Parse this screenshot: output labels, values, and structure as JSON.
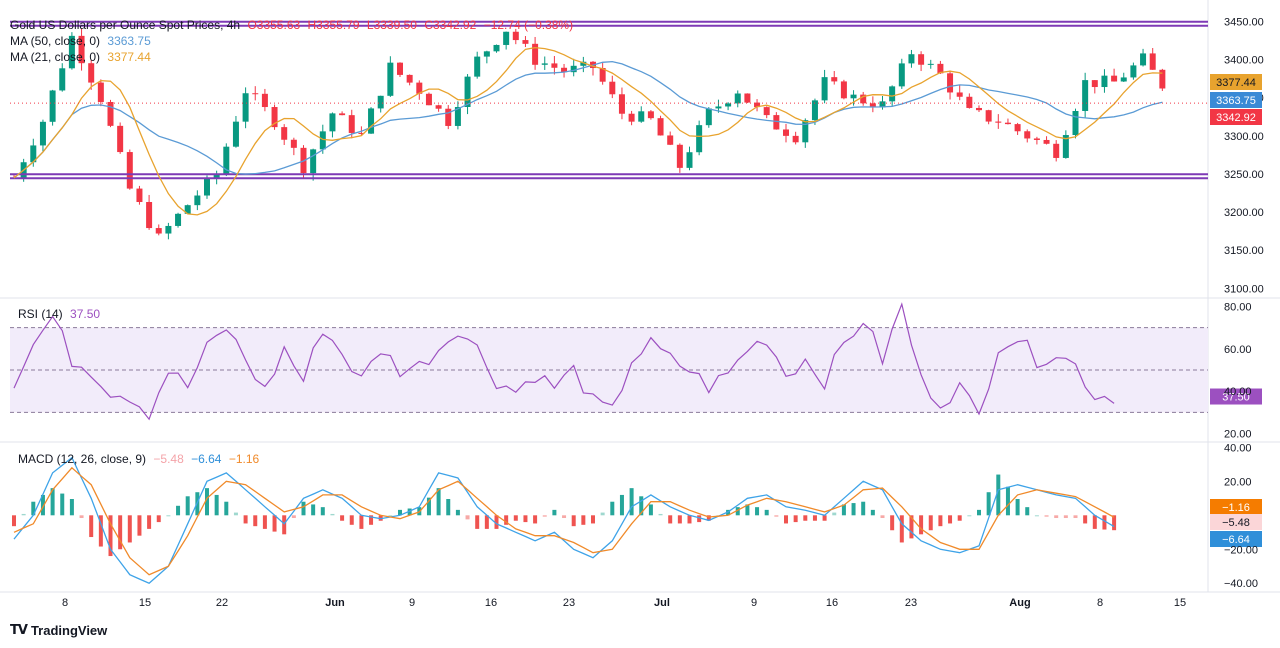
{
  "header": {
    "symbol": "Gold US Dollars per Ounce Spot Prices, 4h",
    "open": "O3355.63",
    "high": "H3355.79",
    "low": "L3339.50",
    "close": "C3342.92",
    "change": "−12.74 (−0.38%)"
  },
  "legends": {
    "ma50": {
      "label": "MA (50, close, 0)",
      "value": "3363.75",
      "color": "#5b9bd5"
    },
    "ma21": {
      "label": "MA (21, close, 0)",
      "value": "3377.44",
      "color": "#e8a32e"
    },
    "rsi": {
      "label": "RSI (14)",
      "value": "37.50",
      "color": "#9c50c0"
    },
    "macd": {
      "label": "MACD (12, 26, close, 9)",
      "hist": "−5.48",
      "macd": "−6.64",
      "signal": "−1.16"
    }
  },
  "brand": {
    "name": "TradingView"
  },
  "colors": {
    "up": "#089981",
    "down": "#f23645",
    "ma50": "#5b9bd5",
    "ma21": "#e8a32e",
    "rsi": "#9c50c0",
    "zone": "#7e3ab5",
    "macd": "#3ea3e8",
    "signal": "#f08a2a"
  },
  "chart_data": [
    {
      "type": "candlestick",
      "title": "Gold US Dollars per Ounce Spot Prices, 4h",
      "x_tick_labels": [
        "8",
        "15",
        "22",
        "Jun",
        "9",
        "16",
        "23",
        "Jul",
        "9",
        "16",
        "23",
        "Aug",
        "8",
        "15"
      ],
      "y_ticks": [
        "3450.00",
        "3400.00",
        "3350.00",
        "3300.00",
        "3250.00",
        "3200.00",
        "3150.00",
        "3100.00"
      ],
      "ylim": [
        3090,
        3465
      ],
      "close_points": [
        [
          0,
          3245
        ],
        [
          3,
          3320
        ],
        [
          6,
          3430
        ],
        [
          9,
          3350
        ],
        [
          12,
          3230
        ],
        [
          15,
          3165
        ],
        [
          18,
          3210
        ],
        [
          21,
          3250
        ],
        [
          24,
          3360
        ],
        [
          27,
          3320
        ],
        [
          30,
          3260
        ],
        [
          33,
          3330
        ],
        [
          36,
          3300
        ],
        [
          39,
          3390
        ],
        [
          42,
          3360
        ],
        [
          45,
          3320
        ],
        [
          48,
          3400
        ],
        [
          51,
          3440
        ],
        [
          54,
          3400
        ],
        [
          57,
          3385
        ],
        [
          60,
          3390
        ],
        [
          63,
          3330
        ],
        [
          66,
          3320
        ],
        [
          69,
          3260
        ],
        [
          72,
          3330
        ],
        [
          75,
          3360
        ],
        [
          78,
          3320
        ],
        [
          81,
          3300
        ],
        [
          84,
          3370
        ],
        [
          87,
          3350
        ],
        [
          90,
          3340
        ],
        [
          93,
          3410
        ],
        [
          96,
          3380
        ],
        [
          99,
          3330
        ],
        [
          102,
          3320
        ],
        [
          105,
          3300
        ],
        [
          108,
          3280
        ],
        [
          111,
          3370
        ],
        [
          114,
          3370
        ],
        [
          117,
          3400
        ],
        [
          120,
          3350
        ]
      ],
      "support_levels": [
        3247,
        3447
      ],
      "series": [
        {
          "name": "MA (50, close, 0)",
          "last": 3363.75
        },
        {
          "name": "MA (21, close, 0)",
          "last": 3377.44
        }
      ],
      "price_labels": [
        {
          "name": "MA21",
          "value": "3377.44"
        },
        {
          "name": "MA50",
          "value": "3363.75"
        },
        {
          "name": "Last",
          "value": "3342.92"
        }
      ]
    },
    {
      "type": "line",
      "title": "RSI (14)",
      "y_ticks": [
        "80.00",
        "60.00",
        "40.00",
        "20.00"
      ],
      "ylim": [
        17,
        83
      ],
      "band": [
        30,
        70
      ],
      "midline": 50,
      "points": [
        [
          0,
          45
        ],
        [
          2,
          62
        ],
        [
          4,
          75
        ],
        [
          6,
          55
        ],
        [
          8,
          50
        ],
        [
          10,
          40
        ],
        [
          12,
          38
        ],
        [
          14,
          30
        ],
        [
          16,
          50
        ],
        [
          18,
          42
        ],
        [
          20,
          60
        ],
        [
          22,
          70
        ],
        [
          24,
          55
        ],
        [
          26,
          40
        ],
        [
          28,
          60
        ],
        [
          30,
          45
        ],
        [
          32,
          70
        ],
        [
          34,
          58
        ],
        [
          36,
          45
        ],
        [
          38,
          60
        ],
        [
          40,
          50
        ],
        [
          42,
          52
        ],
        [
          44,
          60
        ],
        [
          46,
          70
        ],
        [
          48,
          60
        ],
        [
          50,
          45
        ],
        [
          52,
          40
        ],
        [
          54,
          48
        ],
        [
          56,
          42
        ],
        [
          58,
          50
        ],
        [
          60,
          35
        ],
        [
          62,
          30
        ],
        [
          64,
          55
        ],
        [
          66,
          62
        ],
        [
          68,
          55
        ],
        [
          70,
          50
        ],
        [
          72,
          42
        ],
        [
          74,
          48
        ],
        [
          76,
          60
        ],
        [
          78,
          65
        ],
        [
          80,
          48
        ],
        [
          82,
          55
        ],
        [
          84,
          45
        ],
        [
          86,
          62
        ],
        [
          88,
          74
        ],
        [
          90,
          55
        ],
        [
          92,
          80
        ],
        [
          94,
          45
        ],
        [
          96,
          35
        ],
        [
          98,
          42
        ],
        [
          100,
          28
        ],
        [
          102,
          62
        ],
        [
          104,
          65
        ],
        [
          106,
          55
        ],
        [
          108,
          58
        ],
        [
          110,
          52
        ],
        [
          112,
          38
        ],
        [
          114,
          37.5
        ]
      ],
      "last_value": "37.50"
    },
    {
      "type": "bar+line",
      "title": "MACD (12, 26, close, 9)",
      "y_ticks": [
        "40.00",
        "20.00",
        "−20.00",
        "−40.00"
      ],
      "ylim": [
        -44,
        42
      ],
      "macd_points": [
        [
          0,
          -14
        ],
        [
          2,
          0
        ],
        [
          4,
          25
        ],
        [
          6,
          34
        ],
        [
          8,
          10
        ],
        [
          10,
          -20
        ],
        [
          12,
          -35
        ],
        [
          14,
          -40
        ],
        [
          16,
          -30
        ],
        [
          18,
          -5
        ],
        [
          20,
          20
        ],
        [
          22,
          25
        ],
        [
          24,
          15
        ],
        [
          26,
          5
        ],
        [
          28,
          -5
        ],
        [
          30,
          10
        ],
        [
          32,
          15
        ],
        [
          34,
          10
        ],
        [
          36,
          0
        ],
        [
          38,
          -2
        ],
        [
          40,
          0
        ],
        [
          42,
          5
        ],
        [
          44,
          25
        ],
        [
          46,
          22
        ],
        [
          48,
          5
        ],
        [
          50,
          -5
        ],
        [
          52,
          -10
        ],
        [
          54,
          -15
        ],
        [
          56,
          -10
        ],
        [
          58,
          -20
        ],
        [
          60,
          -25
        ],
        [
          62,
          -15
        ],
        [
          64,
          5
        ],
        [
          66,
          12
        ],
        [
          68,
          5
        ],
        [
          70,
          0
        ],
        [
          72,
          -3
        ],
        [
          74,
          2
        ],
        [
          76,
          10
        ],
        [
          78,
          12
        ],
        [
          80,
          5
        ],
        [
          82,
          3
        ],
        [
          84,
          0
        ],
        [
          86,
          10
        ],
        [
          88,
          20
        ],
        [
          90,
          15
        ],
        [
          92,
          -5
        ],
        [
          94,
          -15
        ],
        [
          96,
          -20
        ],
        [
          98,
          -22
        ],
        [
          100,
          -18
        ],
        [
          102,
          15
        ],
        [
          104,
          18
        ],
        [
          106,
          15
        ],
        [
          108,
          12
        ],
        [
          110,
          10
        ],
        [
          112,
          0
        ],
        [
          114,
          -6.64
        ]
      ],
      "signal_points": [
        [
          0,
          -10
        ],
        [
          2,
          -5
        ],
        [
          4,
          15
        ],
        [
          6,
          28
        ],
        [
          8,
          18
        ],
        [
          10,
          -5
        ],
        [
          12,
          -25
        ],
        [
          14,
          -35
        ],
        [
          16,
          -30
        ],
        [
          18,
          -12
        ],
        [
          20,
          10
        ],
        [
          22,
          20
        ],
        [
          24,
          18
        ],
        [
          26,
          10
        ],
        [
          28,
          2
        ],
        [
          30,
          5
        ],
        [
          32,
          12
        ],
        [
          34,
          12
        ],
        [
          36,
          5
        ],
        [
          38,
          0
        ],
        [
          40,
          -2
        ],
        [
          42,
          2
        ],
        [
          44,
          15
        ],
        [
          46,
          20
        ],
        [
          48,
          10
        ],
        [
          50,
          0
        ],
        [
          52,
          -8
        ],
        [
          54,
          -12
        ],
        [
          56,
          -12
        ],
        [
          58,
          -16
        ],
        [
          60,
          -22
        ],
        [
          62,
          -20
        ],
        [
          64,
          -5
        ],
        [
          66,
          8
        ],
        [
          68,
          8
        ],
        [
          70,
          3
        ],
        [
          72,
          -1
        ],
        [
          74,
          0
        ],
        [
          76,
          6
        ],
        [
          78,
          10
        ],
        [
          80,
          8
        ],
        [
          82,
          5
        ],
        [
          84,
          2
        ],
        [
          86,
          6
        ],
        [
          88,
          15
        ],
        [
          90,
          16
        ],
        [
          92,
          5
        ],
        [
          94,
          -8
        ],
        [
          96,
          -16
        ],
        [
          98,
          -20
        ],
        [
          100,
          -20
        ],
        [
          102,
          0
        ],
        [
          104,
          12
        ],
        [
          106,
          15
        ],
        [
          108,
          13
        ],
        [
          110,
          11
        ],
        [
          112,
          5
        ],
        [
          114,
          -1.16
        ]
      ],
      "price_labels": [
        {
          "name": "Signal",
          "value": "−1.16"
        },
        {
          "name": "Histogram",
          "value": "−5.48"
        },
        {
          "name": "MACD",
          "value": "−6.64"
        }
      ]
    }
  ]
}
